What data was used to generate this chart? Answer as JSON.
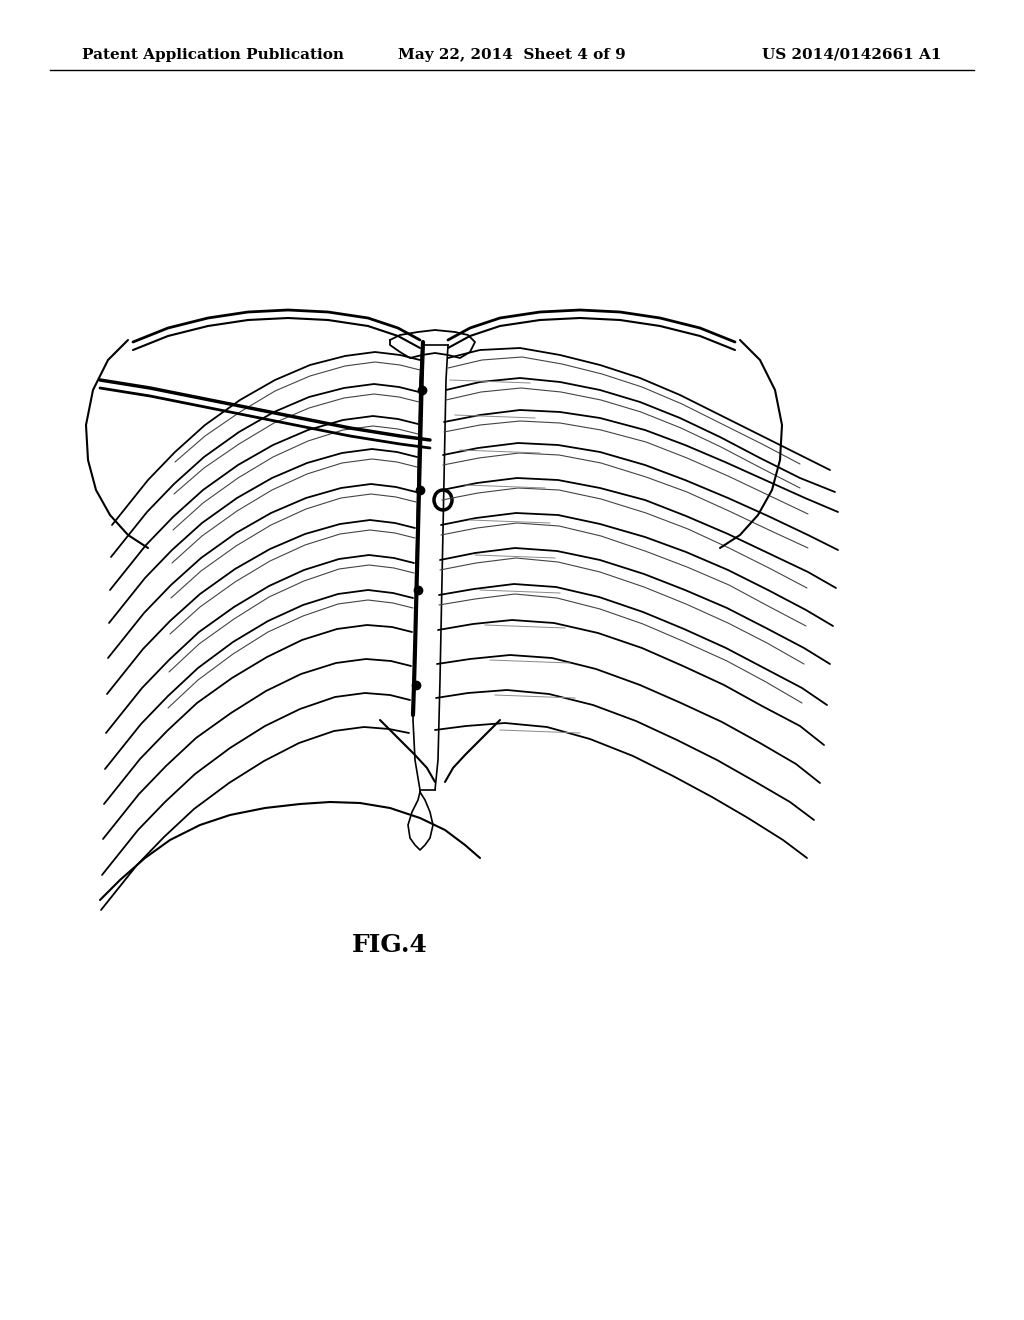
{
  "title_left": "Patent Application Publication",
  "title_center": "May 22, 2014  Sheet 4 of 9",
  "title_right": "US 2014/0142661 A1",
  "fig_label": "FIG.4",
  "bg_color": "#ffffff",
  "line_color": "#000000",
  "fig_label_fontsize": 18,
  "header_fontsize": 11
}
